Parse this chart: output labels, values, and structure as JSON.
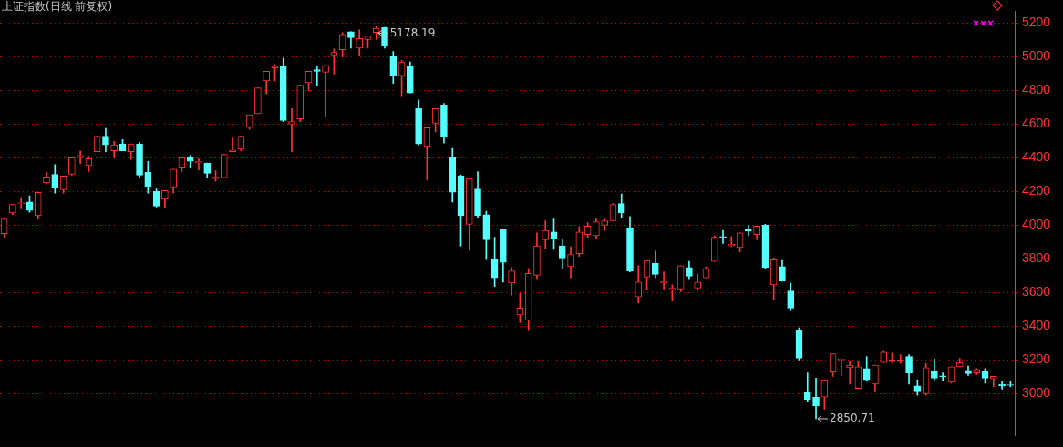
{
  "chart_data": {
    "type": "candlestick",
    "title": "上证指数(日线 前复权)",
    "categories": [
      null,
      null,
      null,
      null,
      null,
      null,
      null,
      null,
      null,
      null,
      null,
      null,
      null,
      null,
      null,
      null,
      null,
      null,
      null,
      null,
      null,
      null,
      null,
      null,
      null,
      null,
      null,
      null,
      null,
      null,
      null,
      null,
      null,
      null,
      null,
      null,
      null,
      null,
      null,
      null,
      null,
      null,
      null,
      null,
      null,
      null,
      null,
      null,
      null,
      null,
      null,
      null,
      null,
      null,
      null,
      null,
      null,
      null,
      null,
      null,
      null,
      null,
      null,
      null,
      null,
      null,
      null,
      null,
      null,
      null,
      null,
      null,
      null,
      null,
      null,
      null,
      null,
      null,
      null,
      null,
      null,
      null,
      null,
      null,
      null,
      null,
      null,
      null,
      null,
      null,
      null,
      null,
      null,
      null,
      null,
      null,
      null,
      null,
      null,
      null,
      null,
      null,
      null,
      null,
      null,
      null,
      null,
      null,
      null,
      null,
      null,
      null,
      null,
      null,
      null,
      null,
      null,
      null,
      null,
      null
    ],
    "ohlc": [
      [
        3949,
        4040,
        3930,
        4036
      ],
      [
        4072,
        4125,
        4062,
        4123
      ],
      [
        4128,
        4164,
        4097,
        4133
      ],
      [
        4138,
        4174,
        4077,
        4087
      ],
      [
        4056,
        4195,
        4036,
        4195
      ],
      [
        4251,
        4313,
        4246,
        4287
      ],
      [
        4302,
        4359,
        4190,
        4220
      ],
      [
        4210,
        4292,
        4190,
        4292
      ],
      [
        4302,
        4400,
        4297,
        4400
      ],
      [
        4410,
        4441,
        4364,
        4415
      ],
      [
        4354,
        4410,
        4318,
        4395
      ],
      [
        4436,
        4528,
        4436,
        4528
      ],
      [
        4528,
        4574,
        4436,
        4477
      ],
      [
        4441,
        4497,
        4400,
        4477
      ],
      [
        4482,
        4508,
        4441,
        4441
      ],
      [
        4436,
        4482,
        4390,
        4482
      ],
      [
        4482,
        4492,
        4282,
        4297
      ],
      [
        4313,
        4379,
        4190,
        4231
      ],
      [
        4200,
        4215,
        4108,
        4113
      ],
      [
        4154,
        4205,
        4103,
        4205
      ],
      [
        4226,
        4333,
        4190,
        4333
      ],
      [
        4344,
        4400,
        4318,
        4400
      ],
      [
        4405,
        4415,
        4344,
        4379
      ],
      [
        4369,
        4395,
        4328,
        4379
      ],
      [
        4369,
        4369,
        4282,
        4308
      ],
      [
        4277,
        4323,
        4262,
        4287
      ],
      [
        4282,
        4420,
        4282,
        4420
      ],
      [
        4436,
        4518,
        4436,
        4446
      ],
      [
        4451,
        4528,
        4441,
        4528
      ],
      [
        4579,
        4656,
        4569,
        4656
      ],
      [
        4662,
        4815,
        4662,
        4815
      ],
      [
        4856,
        4913,
        4779,
        4913
      ],
      [
        4933,
        4954,
        4856,
        4944
      ],
      [
        4944,
        4990,
        4615,
        4621
      ],
      [
        4600,
        4692,
        4436,
        4615
      ],
      [
        4631,
        4831,
        4615,
        4831
      ],
      [
        4846,
        4913,
        4800,
        4913
      ],
      [
        4923,
        4944,
        4826,
        4913
      ],
      [
        4908,
        4949,
        4646,
        4949
      ],
      [
        5010,
        5046,
        4897,
        5026
      ],
      [
        5041,
        5144,
        5000,
        5133
      ],
      [
        5149,
        5149,
        5051,
        5113
      ],
      [
        5051,
        5159,
        5005,
        5108
      ],
      [
        5103,
        5123,
        5051,
        5123
      ],
      [
        5144,
        5178.19,
        5103,
        5169
      ],
      [
        5174,
        5175,
        5051,
        5067
      ],
      [
        5005,
        5031,
        4841,
        4887
      ],
      [
        4887,
        4979,
        4769,
        4969
      ],
      [
        4944,
        4969,
        4785,
        4785
      ],
      [
        4692,
        4744,
        4477,
        4482
      ],
      [
        4467,
        4579,
        4267,
        4579
      ],
      [
        4605,
        4692,
        4554,
        4692
      ],
      [
        4713,
        4723,
        4487,
        4528
      ],
      [
        4400,
        4456,
        4138,
        4195
      ],
      [
        4292,
        4297,
        3877,
        4056
      ],
      [
        4005,
        4277,
        3851,
        4277
      ],
      [
        4215,
        4318,
        4046,
        4056
      ],
      [
        4062,
        4082,
        3795,
        3913
      ],
      [
        3795,
        3928,
        3636,
        3687
      ],
      [
        3974,
        3974,
        3662,
        3779
      ],
      [
        3656,
        3749,
        3585,
        3728
      ],
      [
        3467,
        3595,
        3421,
        3508
      ],
      [
        3436,
        3744,
        3374,
        3713
      ],
      [
        3703,
        3954,
        3677,
        3877
      ],
      [
        3913,
        4026,
        3862,
        3969
      ],
      [
        3959,
        4036,
        3856,
        3923
      ],
      [
        3877,
        3913,
        3744,
        3805
      ],
      [
        3754,
        3872,
        3687,
        3826
      ],
      [
        3831,
        3990,
        3815,
        3959
      ],
      [
        3944,
        4015,
        3928,
        3995
      ],
      [
        3938,
        4036,
        3918,
        4020
      ],
      [
        4000,
        4036,
        3969,
        4026
      ],
      [
        4026,
        4128,
        4026,
        4123
      ],
      [
        4128,
        4185,
        4046,
        4072
      ],
      [
        3985,
        4051,
        3723,
        3728
      ],
      [
        3574,
        3759,
        3538,
        3662
      ],
      [
        3692,
        3790,
        3615,
        3790
      ],
      [
        3774,
        3846,
        3687,
        3708
      ],
      [
        3656,
        3723,
        3621,
        3667
      ],
      [
        3615,
        3646,
        3549,
        3626
      ],
      [
        3621,
        3759,
        3605,
        3759
      ],
      [
        3749,
        3785,
        3677,
        3697
      ],
      [
        3626,
        3708,
        3615,
        3662
      ],
      [
        3687,
        3754,
        3687,
        3744
      ],
      [
        3785,
        3938,
        3785,
        3928
      ],
      [
        3933,
        3969,
        3892,
        3928
      ],
      [
        3877,
        3933,
        3872,
        3887
      ],
      [
        3867,
        3954,
        3841,
        3954
      ],
      [
        3979,
        4000,
        3938,
        3964
      ],
      [
        3944,
        3995,
        3913,
        3995
      ],
      [
        4000,
        4005,
        3744,
        3749
      ],
      [
        3646,
        3805,
        3559,
        3795
      ],
      [
        3754,
        3790,
        3667,
        3667
      ],
      [
        3610,
        3656,
        3492,
        3508
      ],
      [
        3374,
        3390,
        3200,
        3210
      ],
      [
        3005,
        3123,
        2949,
        2964
      ],
      [
        2979,
        3092,
        2850.71,
        2928
      ],
      [
        2979,
        3082,
        2908,
        3082
      ],
      [
        3128,
        3236,
        3103,
        3236
      ],
      [
        3200,
        3210,
        3108,
        3205
      ],
      [
        3154,
        3190,
        3056,
        3169
      ],
      [
        3031,
        3190,
        3031,
        3159
      ],
      [
        3149,
        3220,
        3072,
        3082
      ],
      [
        3056,
        3169,
        3010,
        3169
      ],
      [
        3185,
        3251,
        3185,
        3246
      ],
      [
        3190,
        3241,
        3185,
        3200
      ],
      [
        3190,
        3231,
        3180,
        3200
      ],
      [
        3220,
        3231,
        3056,
        3123
      ],
      [
        3046,
        3082,
        2990,
        3010
      ],
      [
        3000,
        3180,
        2990,
        3154
      ],
      [
        3133,
        3205,
        3082,
        3092
      ],
      [
        3105,
        3123,
        3077,
        3100
      ],
      [
        3067,
        3159,
        3062,
        3159
      ],
      [
        3159,
        3210,
        3159,
        3185
      ],
      [
        3138,
        3164,
        3108,
        3118
      ],
      [
        3123,
        3149,
        3113,
        3144
      ],
      [
        3133,
        3149,
        3062,
        3092
      ],
      [
        3087,
        3103,
        3041,
        3103
      ],
      [
        3056,
        3072,
        3026,
        3046
      ],
      [
        3053,
        3072,
        3041,
        3049
      ]
    ],
    "colors": [
      "#ff3232",
      "#ff3232",
      "#ff3232",
      "#54ffff",
      "#ff3232",
      "#ff3232",
      "#54ffff",
      "#ff3232",
      "#ff3232",
      "#ff3232",
      "#ff3232",
      "#ff3232",
      "#54ffff",
      "#ff3232",
      "#54ffff",
      "#ff3232",
      "#54ffff",
      "#54ffff",
      "#54ffff",
      "#ff3232",
      "#ff3232",
      "#ff3232",
      "#54ffff",
      "#ff3232",
      "#54ffff",
      "#ff3232",
      "#ff3232",
      "#ff3232",
      "#ff3232",
      "#ff3232",
      "#ff3232",
      "#ff3232",
      "#ff3232",
      "#54ffff",
      "#ff3232",
      "#ff3232",
      "#ff3232",
      "#54ffff",
      "#ff3232",
      "#ff3232",
      "#ff3232",
      "#54ffff",
      "#ff3232",
      "#ff3232",
      "#ff3232",
      "#54ffff",
      "#54ffff",
      "#ff3232",
      "#54ffff",
      "#54ffff",
      "#ff3232",
      "#ff3232",
      "#54ffff",
      "#54ffff",
      "#54ffff",
      "#ff3232",
      "#54ffff",
      "#54ffff",
      "#54ffff",
      "#54ffff",
      "#ff3232",
      "#ff3232",
      "#ff3232",
      "#ff3232",
      "#ff3232",
      "#54ffff",
      "#54ffff",
      "#ff3232",
      "#ff3232",
      "#ff3232",
      "#ff3232",
      "#ff3232",
      "#ff3232",
      "#54ffff",
      "#54ffff",
      "#ff3232",
      "#ff3232",
      "#54ffff",
      "#ff3232",
      "#ff3232",
      "#ff3232",
      "#54ffff",
      "#ff3232",
      "#ff3232",
      "#ff3232",
      "#54ffff",
      "#ff3232",
      "#ff3232",
      "#54ffff",
      "#ff3232",
      "#54ffff",
      "#ff3232",
      "#54ffff",
      "#54ffff",
      "#54ffff",
      "#54ffff",
      "#54ffff",
      "#ff3232",
      "#ff3232",
      "#ff3232",
      "#ff3232",
      "#ff3232",
      "#54ffff",
      "#ff3232",
      "#ff3232",
      "#ff3232",
      "#ff3232",
      "#54ffff",
      "#54ffff",
      "#ff3232",
      "#54ffff",
      "#54ffff",
      "#ff3232",
      "#ff3232",
      "#54ffff",
      "#ff3232",
      "#54ffff",
      "#ff3232",
      "#54ffff",
      "#54ffff"
    ],
    "ylim": [
      2750,
      5270
    ],
    "yticks": [
      3000,
      3200,
      3400,
      3600,
      3800,
      4000,
      4200,
      4400,
      4600,
      4800,
      5000,
      5200
    ],
    "grid": "y",
    "legend": false,
    "tick_labels": "y",
    "annotations": [
      "5178.19",
      "2850.71"
    ]
  }
}
